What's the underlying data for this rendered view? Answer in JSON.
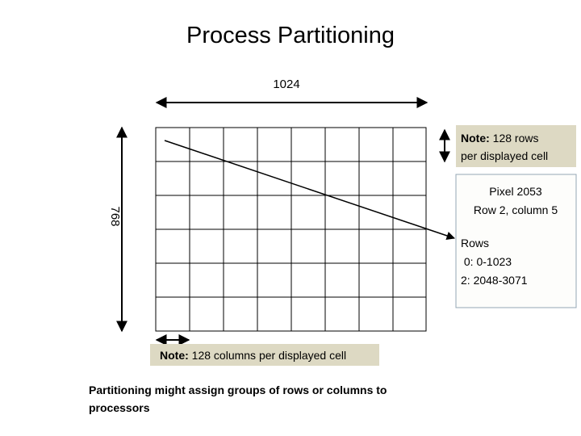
{
  "header": {
    "title": "Process Partitioning"
  },
  "dimensions": {
    "width_label": "1024",
    "height_label": "768"
  },
  "row_note": {
    "label": "Note:",
    "lines": [
      " 128 rows",
      "per displayed cell"
    ]
  },
  "column_note": {
    "label": "Note:",
    "text": " 128 columns per displayed cell"
  },
  "pixel_box": {
    "lines": [
      "Pixel 2053",
      "Row 2, column 5",
      "Rows",
      " 0: 0-1023",
      "2: 2048-3071"
    ]
  },
  "footer": {
    "lines": [
      "Partitioning might assign groups of rows or columns to",
      "processors"
    ]
  }
}
